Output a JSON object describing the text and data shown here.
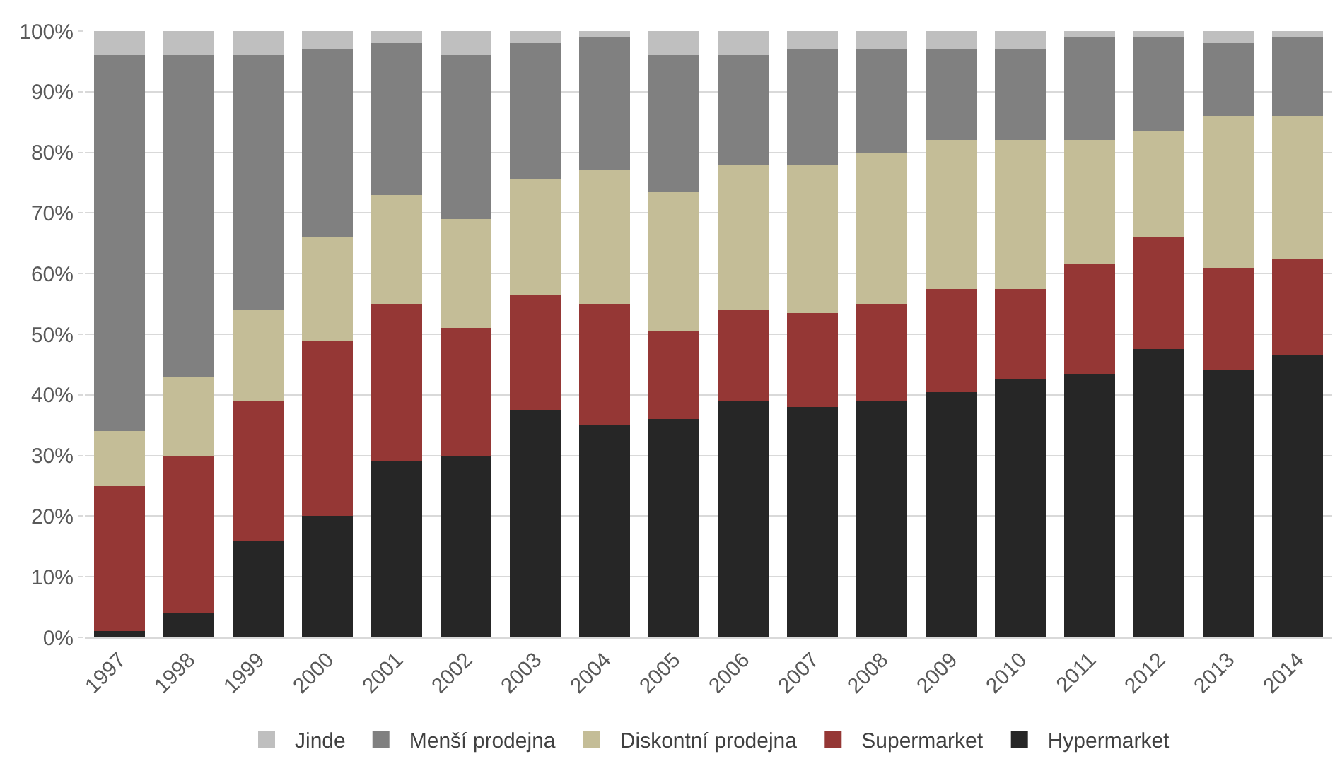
{
  "chart_data": {
    "type": "bar",
    "stacked": true,
    "categories": [
      "1997",
      "1998",
      "1999",
      "2000",
      "2001",
      "2002",
      "2003",
      "2004",
      "2005",
      "2006",
      "2007",
      "2008",
      "2009",
      "2010",
      "2011",
      "2012",
      "2013",
      "2014"
    ],
    "series": [
      {
        "name": "Hypermarket",
        "color": "#262626",
        "values": [
          1,
          4,
          16,
          20,
          29,
          30,
          37.5,
          35,
          36,
          39,
          38,
          39,
          40.5,
          42.5,
          43.5,
          47.5,
          44,
          46.5
        ]
      },
      {
        "name": "Supermarket",
        "color": "#953735",
        "values": [
          24,
          26,
          23,
          29,
          26,
          21,
          19,
          20,
          14.5,
          15,
          15.5,
          16,
          17,
          15,
          18,
          18.5,
          17,
          16
        ]
      },
      {
        "name": "Diskontní prodejna",
        "color": "#c4bd97",
        "values": [
          9,
          13,
          15,
          17,
          18,
          18,
          19,
          22,
          23,
          24,
          24.5,
          25,
          24.5,
          24.5,
          20.5,
          17.5,
          25,
          23.5
        ]
      },
      {
        "name": "Menší prodejna",
        "color": "#808080",
        "values": [
          62,
          53,
          42,
          31,
          25,
          27,
          22.5,
          22,
          22.5,
          18,
          19,
          17,
          15,
          15,
          17,
          15.5,
          12,
          13
        ]
      },
      {
        "name": "Jinde",
        "color": "#bfbfbf",
        "values": [
          4,
          4,
          4,
          3,
          2,
          4,
          2,
          1,
          4,
          4,
          3,
          3,
          3,
          3,
          1,
          1,
          2,
          1
        ]
      }
    ],
    "ylim": [
      0,
      100
    ],
    "yticks": [
      {
        "value": 0,
        "label": "0%"
      },
      {
        "value": 10,
        "label": "10%"
      },
      {
        "value": 20,
        "label": "20%"
      },
      {
        "value": 30,
        "label": "30%"
      },
      {
        "value": 40,
        "label": "40%"
      },
      {
        "value": 50,
        "label": "50%"
      },
      {
        "value": 60,
        "label": "60%"
      },
      {
        "value": 70,
        "label": "70%"
      },
      {
        "value": 80,
        "label": "80%"
      },
      {
        "value": 90,
        "label": "90%"
      },
      {
        "value": 100,
        "label": "100%"
      }
    ],
    "grid": "y",
    "legend": "bottom"
  }
}
